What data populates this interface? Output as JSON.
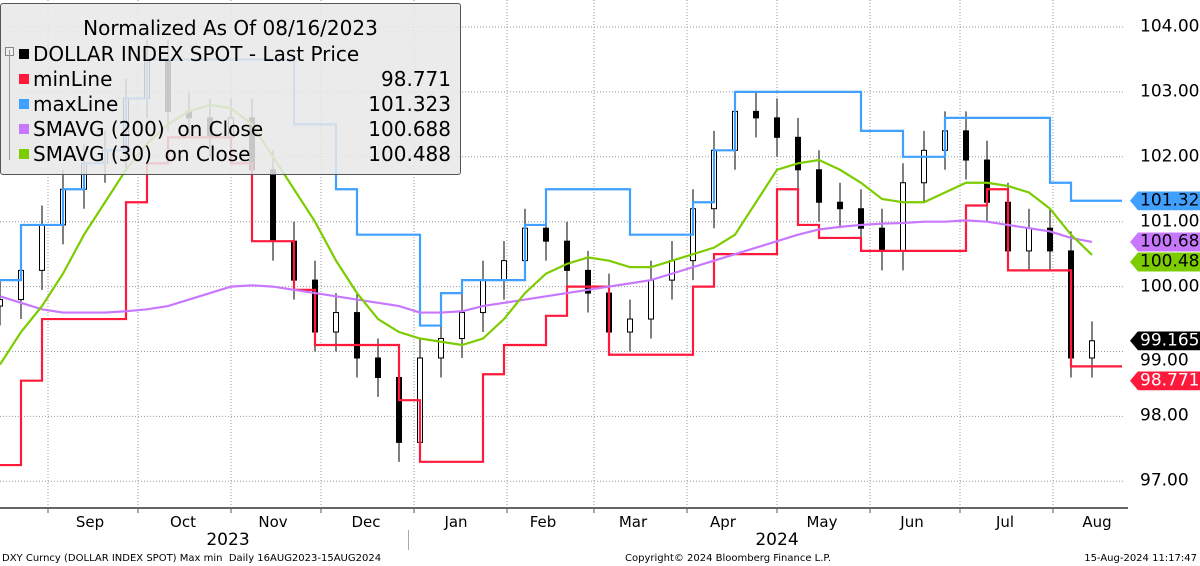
{
  "chart_data": {
    "type": "line",
    "title": "Normalized As Of 08/16/2023",
    "x_start": "2023-08-16",
    "x_step_days": 7,
    "x_end": "2024-08-15",
    "ylim": [
      96.6,
      104.4
    ],
    "y_ticks": [
      104,
      103,
      102,
      101,
      100,
      99,
      98,
      97
    ],
    "y_tick_labels": [
      "104.00",
      "103.00",
      "102.00",
      "101.00",
      "100.00",
      "99.00",
      "98.00",
      "97.00"
    ],
    "grid": true,
    "legend_placement": "top-left",
    "month_labels": [
      {
        "label": "Sep",
        "date": "2023-09-15"
      },
      {
        "label": "Oct",
        "date": "2023-10-16"
      },
      {
        "label": "Nov",
        "date": "2023-11-15"
      },
      {
        "label": "Dec",
        "date": "2023-12-16"
      },
      {
        "label": "Jan",
        "date": "2024-01-15"
      },
      {
        "label": "Feb",
        "date": "2024-02-13"
      },
      {
        "label": "Mar",
        "date": "2024-03-14"
      },
      {
        "label": "Apr",
        "date": "2024-04-13"
      },
      {
        "label": "May",
        "date": "2024-05-16"
      },
      {
        "label": "Jun",
        "date": "2024-06-15"
      },
      {
        "label": "Jul",
        "date": "2024-07-16"
      },
      {
        "label": "Aug",
        "date": "2024-08-16"
      }
    ],
    "month_ticks": [
      "2023-09-01",
      "2023-10-01",
      "2023-11-01",
      "2023-12-01",
      "2024-01-01",
      "2024-02-01",
      "2024-03-01",
      "2024-04-01",
      "2024-05-01",
      "2024-06-01",
      "2024-07-01",
      "2024-08-01"
    ],
    "year_labels": [
      {
        "label": "2023",
        "date": "2023-10-31"
      },
      {
        "label": "2024",
        "date": "2024-05-01"
      }
    ],
    "series": [
      {
        "name": "DOLLAR INDEX SPOT - Last Price",
        "legend_value": "",
        "color": "#000000",
        "style": "candle",
        "last": "99.165",
        "values": [
          99.8,
          100.25,
          100.95,
          101.5,
          101.9,
          102.1,
          102.9,
          103.5,
          102.7,
          102.6,
          102.3,
          102.6,
          101.8,
          100.7,
          100.1,
          99.3,
          99.6,
          98.9,
          98.6,
          97.6,
          98.9,
          99.2,
          99.6,
          100.1,
          100.4,
          100.9,
          100.7,
          100.25,
          99.9,
          99.3,
          99.5,
          100.1,
          100.4,
          101.2,
          102.1,
          102.7,
          102.6,
          102.3,
          101.8,
          101.3,
          101.2,
          100.9,
          100.55,
          101.6,
          102.1,
          102.4,
          101.95,
          101.3,
          100.55,
          100.9,
          100.55,
          98.9,
          99.165
        ]
      },
      {
        "name": "minLine",
        "legend_value": "98.771",
        "color": "#ff1a3c",
        "style": "step",
        "last": "98.771",
        "values": [
          97.25,
          98.55,
          99.5,
          99.5,
          99.5,
          99.5,
          101.3,
          101.9,
          102.3,
          102.3,
          102.3,
          101.9,
          100.7,
          100.7,
          99.95,
          99.1,
          99.1,
          99.1,
          99.1,
          98.25,
          97.3,
          97.3,
          97.3,
          98.65,
          99.1,
          99.1,
          99.55,
          100.0,
          100.0,
          98.95,
          98.95,
          98.95,
          98.95,
          100.0,
          100.5,
          100.5,
          100.5,
          101.5,
          100.95,
          100.75,
          100.75,
          100.55,
          100.55,
          100.55,
          100.55,
          100.55,
          101.25,
          101.5,
          100.25,
          100.25,
          100.25,
          98.771,
          98.771
        ]
      },
      {
        "name": "maxLine",
        "legend_value": "101.323",
        "color": "#3fa0ff",
        "style": "step",
        "last": "101.323",
        "values": [
          100.1,
          100.95,
          100.95,
          101.5,
          101.9,
          102.1,
          102.9,
          103.5,
          103.5,
          103.5,
          103.5,
          103.5,
          103.5,
          103.5,
          102.5,
          102.5,
          101.5,
          100.8,
          100.8,
          100.8,
          99.4,
          99.9,
          100.1,
          100.1,
          100.1,
          100.95,
          101.5,
          101.5,
          101.5,
          101.5,
          100.8,
          100.8,
          100.8,
          101.3,
          102.1,
          103.0,
          103.0,
          103.0,
          103.0,
          103.0,
          103.0,
          102.4,
          102.4,
          102.0,
          102.0,
          102.6,
          102.6,
          102.6,
          102.6,
          102.6,
          101.6,
          101.323,
          101.323
        ]
      },
      {
        "name": "SMAVG (200)  on Close",
        "legend_value": "100.688",
        "color": "#c878ff",
        "style": "line",
        "last": "100.688",
        "values": [
          99.85,
          99.75,
          99.65,
          99.6,
          99.6,
          99.6,
          99.62,
          99.65,
          99.7,
          99.8,
          99.9,
          100.0,
          100.02,
          100.0,
          99.95,
          99.9,
          99.85,
          99.8,
          99.75,
          99.7,
          99.6,
          99.6,
          99.62,
          99.7,
          99.75,
          99.8,
          99.85,
          99.9,
          99.95,
          100.0,
          100.05,
          100.1,
          100.2,
          100.3,
          100.4,
          100.5,
          100.6,
          100.7,
          100.8,
          100.88,
          100.92,
          100.95,
          100.97,
          100.98,
          101.0,
          101.0,
          101.02,
          101.0,
          100.95,
          100.9,
          100.85,
          100.75,
          100.688
        ]
      },
      {
        "name": "SMAVG (30)  on Close",
        "legend_value": "100.488",
        "color": "#7ccc00",
        "style": "line",
        "last": "100.488",
        "values": [
          98.8,
          99.3,
          99.7,
          100.2,
          100.8,
          101.3,
          101.8,
          102.2,
          102.5,
          102.7,
          102.8,
          102.75,
          102.5,
          102.0,
          101.5,
          101.0,
          100.4,
          99.9,
          99.5,
          99.3,
          99.2,
          99.15,
          99.1,
          99.2,
          99.5,
          99.9,
          100.2,
          100.35,
          100.45,
          100.4,
          100.3,
          100.3,
          100.4,
          100.5,
          100.6,
          100.8,
          101.3,
          101.8,
          101.9,
          101.95,
          101.8,
          101.6,
          101.35,
          101.3,
          101.3,
          101.45,
          101.6,
          101.6,
          101.55,
          101.45,
          101.2,
          100.8,
          100.488
        ]
      }
    ]
  },
  "footer": {
    "left": "DXY Curncy (DOLLAR INDEX SPOT) Max min  Daily 16AUG2023-15AUG2024",
    "center": "Copyright© 2024 Bloomberg Finance L.P.",
    "right": "15-Aug-2024 11:17:47"
  }
}
